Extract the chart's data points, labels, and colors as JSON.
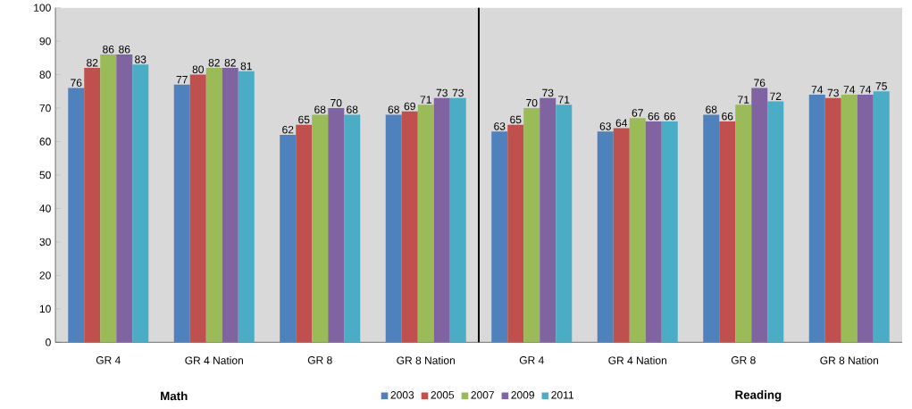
{
  "chart_data": {
    "type": "bar",
    "categories": [
      "GR 4",
      "GR 4 Nation",
      "GR 8",
      "GR 8 Nation",
      "GR 4",
      "GR 4 Nation",
      "GR 8",
      "GR 8 Nation"
    ],
    "series": [
      {
        "name": "2003",
        "color": "#4f81bd",
        "values": [
          76,
          77,
          62,
          68,
          63,
          63,
          68,
          74
        ]
      },
      {
        "name": "2005",
        "color": "#c0504d",
        "values": [
          82,
          80,
          65,
          69,
          65,
          64,
          66,
          73
        ]
      },
      {
        "name": "2007",
        "color": "#9bbb59",
        "values": [
          86,
          82,
          68,
          71,
          70,
          67,
          71,
          74
        ]
      },
      {
        "name": "2009",
        "color": "#8064a2",
        "values": [
          86,
          82,
          70,
          73,
          73,
          66,
          76,
          74
        ]
      },
      {
        "name": "2011",
        "color": "#4bacc6",
        "values": [
          83,
          81,
          68,
          73,
          71,
          66,
          72,
          75
        ]
      }
    ],
    "ylim": [
      0,
      100
    ],
    "yticks": [
      0,
      10,
      20,
      30,
      40,
      50,
      60,
      70,
      80,
      90,
      100
    ],
    "data_labels": true,
    "grid": false,
    "legend": "bottom",
    "annotations": [
      "Math",
      "Reading"
    ]
  }
}
